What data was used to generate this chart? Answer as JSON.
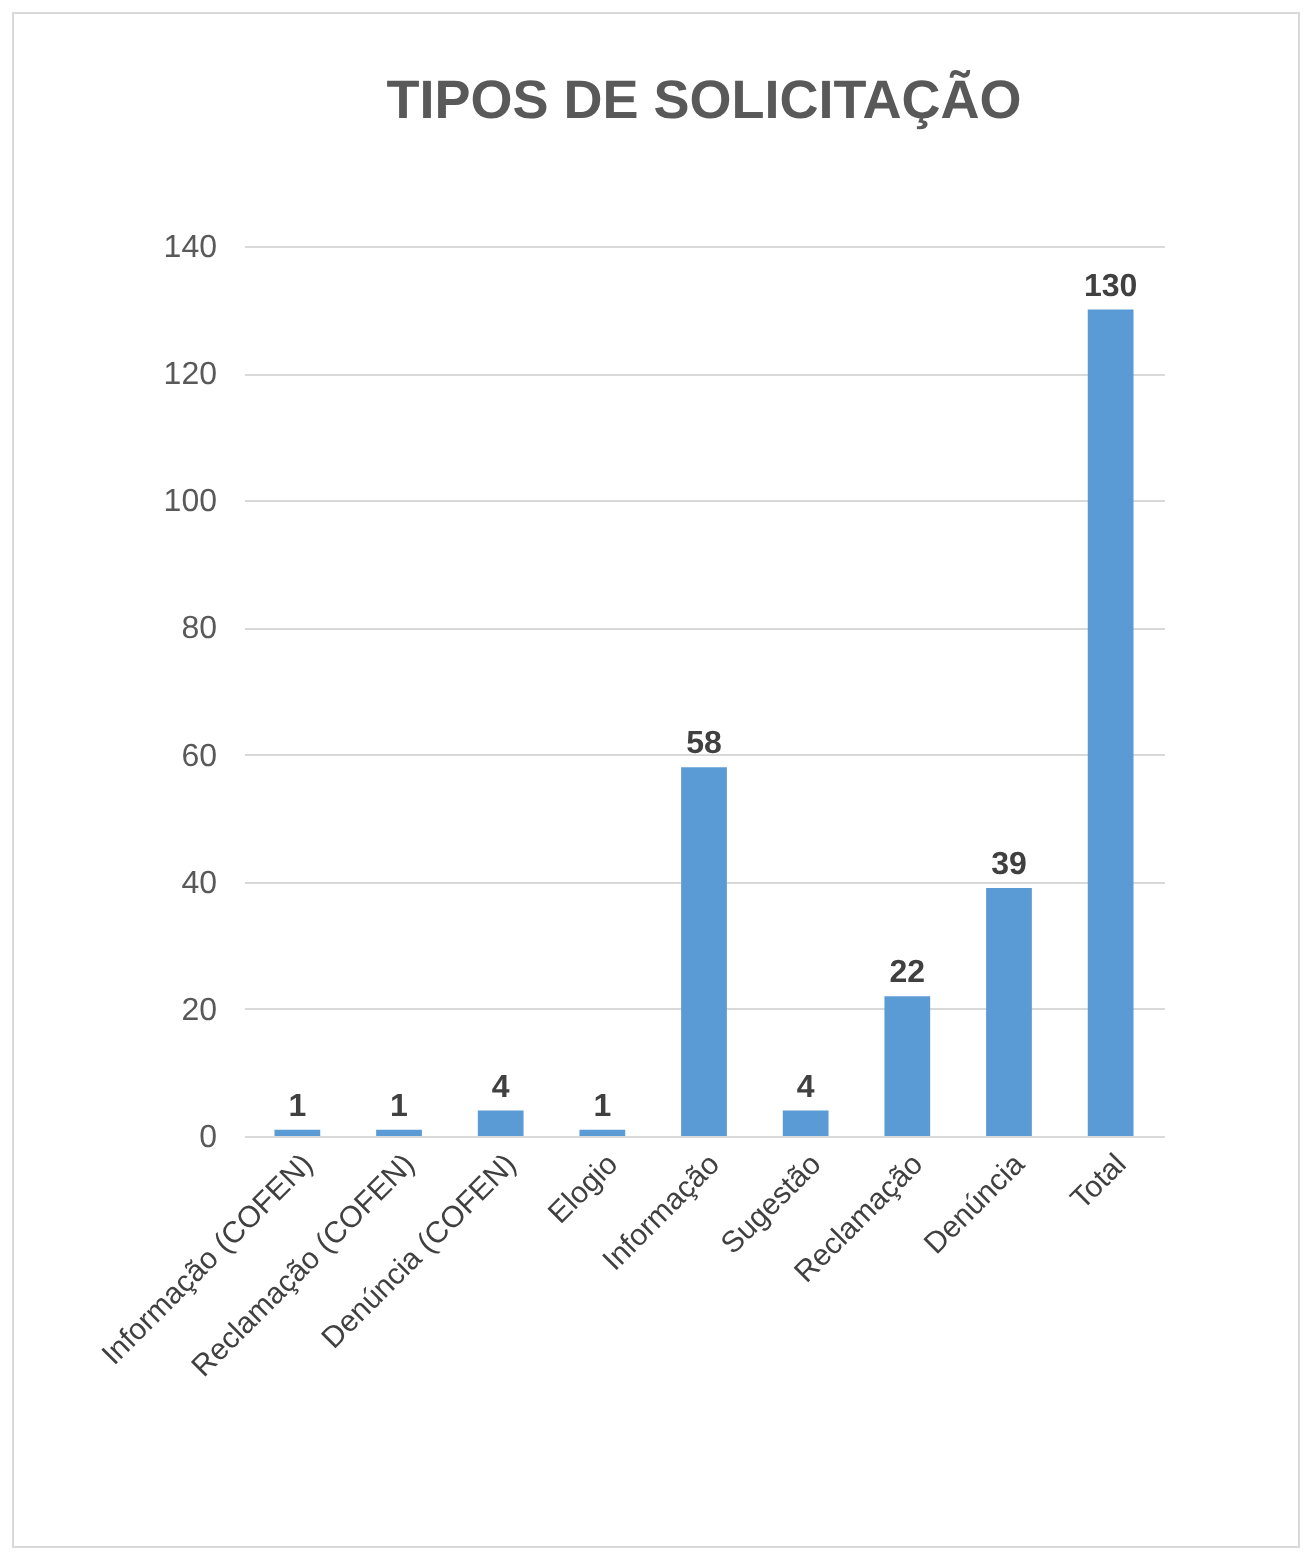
{
  "chart_data": {
    "type": "bar",
    "title": "TIPOS DE SOLICITAÇÃO",
    "categories": [
      "Informação (COFEN)",
      "Reclamação (COFEN)",
      "Denúncia (COFEN)",
      "Elogio",
      "Informação",
      "Sugestão",
      "Reclamação",
      "Denúncia",
      "Total"
    ],
    "values": [
      1,
      1,
      4,
      1,
      58,
      4,
      22,
      39,
      130
    ],
    "color": "#5b9bd5",
    "ylim": [
      0,
      140
    ],
    "yticks": [
      0,
      20,
      40,
      60,
      80,
      100,
      120,
      140
    ],
    "grid": "y",
    "data_labels": true
  }
}
